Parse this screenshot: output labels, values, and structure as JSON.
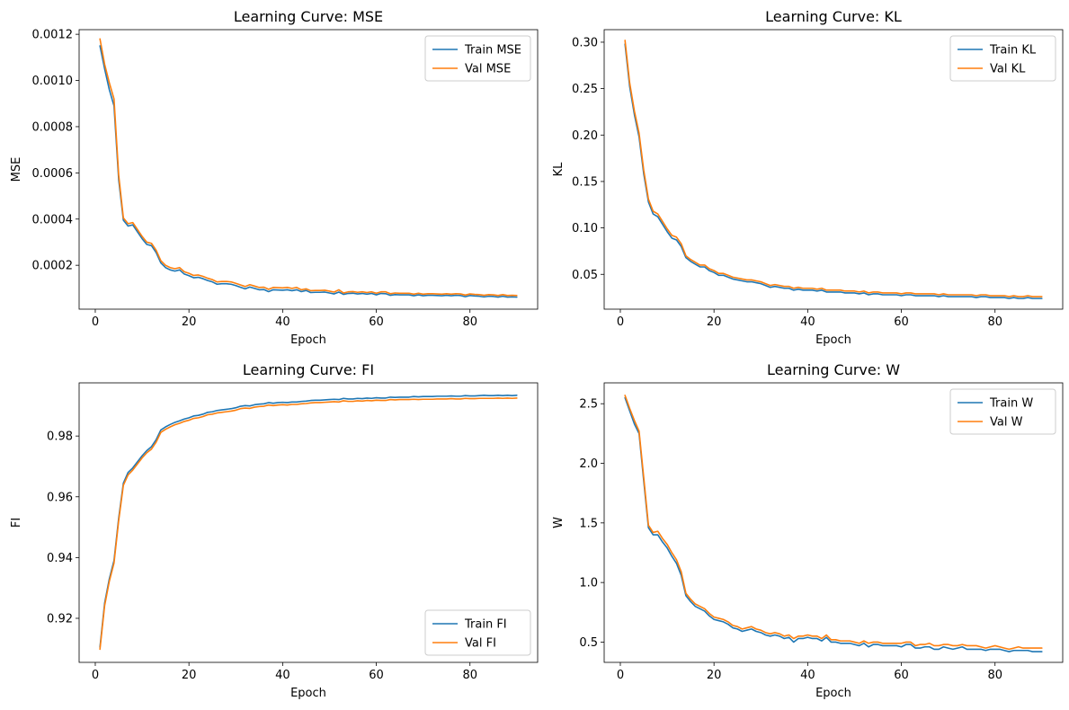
{
  "colors": {
    "train": "#1f77b4",
    "val": "#ff7f0e"
  },
  "chart_data": [
    {
      "type": "line",
      "title": "Learning Curve: MSE",
      "xlabel": "Epoch",
      "ylabel": "MSE",
      "xlim": [
        -3.45,
        94.45
      ],
      "ylim": [
        1e-05,
        0.00122
      ],
      "xticks": [
        {
          "v": 20,
          "label": "20"
        },
        {
          "v": 40,
          "label": "40"
        },
        {
          "v": 60,
          "label": "60"
        },
        {
          "v": 80,
          "label": "80"
        },
        {
          "v": 0,
          "label": "0"
        }
      ],
      "yticks": [
        {
          "v": 0.0002,
          "label": "0.0002"
        },
        {
          "v": 0.0004,
          "label": "0.0004"
        },
        {
          "v": 0.0006,
          "label": "0.0006"
        },
        {
          "v": 0.0008,
          "label": "0.0008"
        },
        {
          "v": 0.001,
          "label": "0.0010"
        },
        {
          "v": 0.0012,
          "label": "0.0012"
        }
      ],
      "legend": "upper-right",
      "series": [
        {
          "name": "Train MSE",
          "x_start": 1,
          "x_end": 90,
          "values": [
            0.00115,
            0.00105,
            0.00096,
            0.00089,
            0.00057,
            0.000395,
            0.00037,
            0.000375,
            0.000345,
            0.000315,
            0.00029,
            0.000285,
            0.000255,
            0.00021,
            0.00019,
            0.00018,
            0.000175,
            0.00018,
            0.000162,
            0.000155,
            0.000146,
            0.000148,
            0.000142,
            0.000134,
            0.000128,
            0.000118,
            0.00012,
            0.00012,
            0.000118,
            0.000112,
            0.000105,
            9.8e-05,
            0.000106,
            0.0001,
            9.4e-05,
            9.5e-05,
            8.6e-05,
            9.4e-05,
            9.3e-05,
            9.2e-05,
            9.4e-05,
            9e-05,
            9.4e-05,
            8.6e-05,
            9.1e-05,
            8.2e-05,
            8.3e-05,
            8.3e-05,
            8.4e-05,
            8e-05,
            7.6e-05,
            8.4e-05,
            7.4e-05,
            7.8e-05,
            7.9e-05,
            7.6e-05,
            7.8e-05,
            7.5e-05,
            7.8e-05,
            7.2e-05,
            7.8e-05,
            7.7e-05,
            7e-05,
            7.3e-05,
            7.2e-05,
            7.2e-05,
            7.2e-05,
            6.8e-05,
            7.2e-05,
            6.8e-05,
            7e-05,
            7e-05,
            6.9e-05,
            6.8e-05,
            7e-05,
            6.8e-05,
            7e-05,
            6.9e-05,
            6.4e-05,
            6.9e-05,
            6.7e-05,
            6.6e-05,
            6.3e-05,
            6.6e-05,
            6.5e-05,
            6.2e-05,
            6.6e-05,
            6.2e-05,
            6.3e-05,
            6.2e-05
          ]
        },
        {
          "name": "Val MSE",
          "x_start": 1,
          "x_end": 90,
          "values": [
            0.00118,
            0.00107,
            0.00099,
            0.00092,
            0.00059,
            0.000405,
            0.00038,
            0.000385,
            0.000355,
            0.000325,
            0.0003,
            0.000295,
            0.000265,
            0.00022,
            0.0002,
            0.00019,
            0.000185,
            0.00019,
            0.000172,
            0.000165,
            0.000156,
            0.000158,
            0.000152,
            0.000144,
            0.000138,
            0.000128,
            0.00013,
            0.00013,
            0.000128,
            0.000122,
            0.000115,
            0.000108,
            0.000116,
            0.00011,
            0.000104,
            0.000105,
            9.6e-05,
            0.000104,
            0.000103,
            0.000102,
            0.000104,
            0.0001,
            0.000104,
            9.4e-05,
            9.8e-05,
            9e-05,
            9.1e-05,
            9.1e-05,
            9.2e-05,
            8.8e-05,
            8.4e-05,
            9.4e-05,
            8e-05,
            8.5e-05,
            8.6e-05,
            8.3e-05,
            8.5e-05,
            8.2e-05,
            8.5e-05,
            7.9e-05,
            8.5e-05,
            8.5e-05,
            7.7e-05,
            8e-05,
            7.9e-05,
            7.9e-05,
            7.9e-05,
            7.5e-05,
            7.9e-05,
            7.5e-05,
            7.7e-05,
            7.7e-05,
            7.6e-05,
            7.5e-05,
            7.7e-05,
            7.5e-05,
            7.7e-05,
            7.6e-05,
            7.1e-05,
            7.6e-05,
            7.4e-05,
            7.3e-05,
            7e-05,
            7.3e-05,
            7.2e-05,
            6.9e-05,
            7.3e-05,
            6.9e-05,
            7e-05,
            6.9e-05
          ]
        }
      ]
    },
    {
      "type": "line",
      "title": "Learning Curve: KL",
      "xlabel": "Epoch",
      "ylabel": "KL",
      "xlim": [
        -3.45,
        94.45
      ],
      "ylim": [
        0.0125,
        0.3135
      ],
      "xticks": [
        {
          "v": 20,
          "label": "20"
        },
        {
          "v": 40,
          "label": "40"
        },
        {
          "v": 60,
          "label": "60"
        },
        {
          "v": 80,
          "label": "80"
        },
        {
          "v": 0,
          "label": "0"
        }
      ],
      "yticks": [
        {
          "v": 0.05,
          "label": "0.05"
        },
        {
          "v": 0.1,
          "label": "0.10"
        },
        {
          "v": 0.15,
          "label": "0.15"
        },
        {
          "v": 0.2,
          "label": "0.20"
        },
        {
          "v": 0.25,
          "label": "0.25"
        },
        {
          "v": 0.3,
          "label": "0.30"
        }
      ],
      "legend": "upper-right",
      "series": [
        {
          "name": "Train KL",
          "x_start": 1,
          "x_end": 90,
          "values": [
            0.298,
            0.252,
            0.222,
            0.198,
            0.158,
            0.128,
            0.115,
            0.112,
            0.104,
            0.096,
            0.089,
            0.087,
            0.08,
            0.068,
            0.064,
            0.061,
            0.058,
            0.058,
            0.054,
            0.052,
            0.049,
            0.049,
            0.047,
            0.045,
            0.044,
            0.043,
            0.042,
            0.042,
            0.041,
            0.04,
            0.038,
            0.036,
            0.037,
            0.036,
            0.035,
            0.035,
            0.033,
            0.034,
            0.033,
            0.033,
            0.033,
            0.032,
            0.033,
            0.031,
            0.031,
            0.031,
            0.031,
            0.03,
            0.03,
            0.03,
            0.029,
            0.03,
            0.028,
            0.029,
            0.029,
            0.028,
            0.028,
            0.028,
            0.028,
            0.027,
            0.028,
            0.028,
            0.027,
            0.027,
            0.027,
            0.027,
            0.027,
            0.026,
            0.027,
            0.026,
            0.026,
            0.026,
            0.026,
            0.026,
            0.026,
            0.025,
            0.026,
            0.026,
            0.025,
            0.025,
            0.025,
            0.025,
            0.024,
            0.025,
            0.024,
            0.024,
            0.025,
            0.024,
            0.024,
            0.024
          ]
        },
        {
          "name": "Val KL",
          "x_start": 1,
          "x_end": 90,
          "values": [
            0.302,
            0.256,
            0.226,
            0.202,
            0.162,
            0.131,
            0.118,
            0.115,
            0.107,
            0.099,
            0.092,
            0.09,
            0.083,
            0.07,
            0.066,
            0.063,
            0.06,
            0.06,
            0.056,
            0.054,
            0.051,
            0.051,
            0.049,
            0.047,
            0.046,
            0.045,
            0.044,
            0.044,
            0.043,
            0.042,
            0.04,
            0.038,
            0.039,
            0.038,
            0.037,
            0.037,
            0.035,
            0.036,
            0.035,
            0.035,
            0.035,
            0.034,
            0.035,
            0.033,
            0.033,
            0.033,
            0.033,
            0.032,
            0.032,
            0.032,
            0.031,
            0.032,
            0.03,
            0.031,
            0.031,
            0.03,
            0.03,
            0.03,
            0.03,
            0.029,
            0.03,
            0.03,
            0.029,
            0.029,
            0.029,
            0.029,
            0.029,
            0.028,
            0.029,
            0.028,
            0.028,
            0.028,
            0.028,
            0.028,
            0.028,
            0.027,
            0.028,
            0.028,
            0.027,
            0.027,
            0.027,
            0.027,
            0.026,
            0.027,
            0.026,
            0.026,
            0.027,
            0.026,
            0.026,
            0.026
          ]
        }
      ]
    },
    {
      "type": "line",
      "title": "Learning Curve: FI",
      "xlabel": "Epoch",
      "ylabel": "FI",
      "xlim": [
        -3.45,
        94.45
      ],
      "ylim": [
        0.9055,
        0.9975
      ],
      "xticks": [
        {
          "v": 20,
          "label": "20"
        },
        {
          "v": 40,
          "label": "40"
        },
        {
          "v": 60,
          "label": "60"
        },
        {
          "v": 80,
          "label": "80"
        },
        {
          "v": 0,
          "label": "0"
        }
      ],
      "yticks": [
        {
          "v": 0.92,
          "label": "0.92"
        },
        {
          "v": 0.94,
          "label": "0.94"
        },
        {
          "v": 0.96,
          "label": "0.96"
        },
        {
          "v": 0.98,
          "label": "0.98"
        }
      ],
      "legend": "lower-right",
      "series": [
        {
          "name": "Train FI",
          "x_start": 1,
          "x_end": 90,
          "values": [
            0.9105,
            0.925,
            0.933,
            0.939,
            0.953,
            0.9645,
            0.968,
            0.9695,
            0.9715,
            0.9735,
            0.9752,
            0.9765,
            0.9788,
            0.982,
            0.983,
            0.9838,
            0.9845,
            0.985,
            0.9856,
            0.986,
            0.9866,
            0.9868,
            0.9872,
            0.9878,
            0.988,
            0.9884,
            0.9886,
            0.9888,
            0.989,
            0.9893,
            0.9898,
            0.99,
            0.9899,
            0.9903,
            0.9905,
            0.9906,
            0.991,
            0.9908,
            0.991,
            0.9911,
            0.991,
            0.9912,
            0.9912,
            0.9914,
            0.9915,
            0.9917,
            0.9918,
            0.9918,
            0.9919,
            0.992,
            0.9921,
            0.992,
            0.9924,
            0.9922,
            0.9922,
            0.9924,
            0.9923,
            0.9925,
            0.9924,
            0.9926,
            0.9925,
            0.9925,
            0.9928,
            0.9927,
            0.9928,
            0.9928,
            0.9928,
            0.993,
            0.9929,
            0.993,
            0.993,
            0.993,
            0.9931,
            0.9931,
            0.9931,
            0.9932,
            0.9931,
            0.9931,
            0.9933,
            0.9932,
            0.9932,
            0.9933,
            0.9934,
            0.9933,
            0.9933,
            0.9934,
            0.9933,
            0.9934,
            0.9933,
            0.9934
          ]
        },
        {
          "name": "Val FI",
          "x_start": 1,
          "x_end": 90,
          "values": [
            0.9098,
            0.9242,
            0.9322,
            0.9382,
            0.9522,
            0.9638,
            0.9672,
            0.9688,
            0.9708,
            0.9728,
            0.9745,
            0.9757,
            0.978,
            0.9812,
            0.9822,
            0.983,
            0.9837,
            0.9842,
            0.9848,
            0.9852,
            0.9858,
            0.986,
            0.9864,
            0.987,
            0.9872,
            0.9876,
            0.9878,
            0.988,
            0.9882,
            0.9885,
            0.989,
            0.9892,
            0.9891,
            0.9895,
            0.9897,
            0.9898,
            0.9902,
            0.99,
            0.9902,
            0.9903,
            0.9902,
            0.9904,
            0.9904,
            0.9906,
            0.9907,
            0.9909,
            0.991,
            0.991,
            0.9911,
            0.9912,
            0.9913,
            0.9912,
            0.9916,
            0.9914,
            0.9914,
            0.9916,
            0.9915,
            0.9917,
            0.9916,
            0.9918,
            0.9917,
            0.9917,
            0.992,
            0.9919,
            0.992,
            0.992,
            0.992,
            0.9921,
            0.992,
            0.9921,
            0.9921,
            0.9921,
            0.9922,
            0.9922,
            0.9922,
            0.9923,
            0.9922,
            0.9922,
            0.9924,
            0.9923,
            0.9923,
            0.9924,
            0.9924,
            0.9924,
            0.9924,
            0.9925,
            0.9924,
            0.9925,
            0.9924,
            0.9925
          ]
        }
      ]
    },
    {
      "type": "line",
      "title": "Learning Curve: W",
      "xlabel": "Epoch",
      "ylabel": "W",
      "xlim": [
        -3.45,
        94.45
      ],
      "ylim": [
        0.33,
        2.675
      ],
      "xticks": [
        {
          "v": 20,
          "label": "20"
        },
        {
          "v": 40,
          "label": "40"
        },
        {
          "v": 60,
          "label": "60"
        },
        {
          "v": 80,
          "label": "80"
        },
        {
          "v": 0,
          "label": "0"
        }
      ],
      "yticks": [
        {
          "v": 0.5,
          "label": "0.5"
        },
        {
          "v": 1.0,
          "label": "1.0"
        },
        {
          "v": 1.5,
          "label": "1.5"
        },
        {
          "v": 2.0,
          "label": "2.0"
        },
        {
          "v": 2.5,
          "label": "2.5"
        }
      ],
      "legend": "upper-right",
      "series": [
        {
          "name": "Train W",
          "x_start": 1,
          "x_end": 90,
          "values": [
            2.55,
            2.44,
            2.33,
            2.25,
            1.85,
            1.46,
            1.4,
            1.4,
            1.34,
            1.29,
            1.22,
            1.16,
            1.06,
            0.89,
            0.84,
            0.8,
            0.78,
            0.76,
            0.72,
            0.69,
            0.68,
            0.67,
            0.65,
            0.62,
            0.61,
            0.59,
            0.6,
            0.61,
            0.59,
            0.58,
            0.56,
            0.55,
            0.56,
            0.55,
            0.53,
            0.54,
            0.5,
            0.53,
            0.53,
            0.54,
            0.53,
            0.53,
            0.51,
            0.54,
            0.5,
            0.5,
            0.49,
            0.49,
            0.49,
            0.48,
            0.47,
            0.49,
            0.46,
            0.48,
            0.48,
            0.47,
            0.47,
            0.47,
            0.47,
            0.46,
            0.48,
            0.48,
            0.45,
            0.45,
            0.46,
            0.46,
            0.44,
            0.44,
            0.46,
            0.45,
            0.44,
            0.45,
            0.46,
            0.44,
            0.44,
            0.44,
            0.44,
            0.43,
            0.44,
            0.44,
            0.44,
            0.43,
            0.42,
            0.43,
            0.43,
            0.43,
            0.43,
            0.42,
            0.42,
            0.42
          ]
        },
        {
          "name": "Val W",
          "x_start": 1,
          "x_end": 90,
          "values": [
            2.57,
            2.46,
            2.36,
            2.27,
            1.88,
            1.48,
            1.42,
            1.43,
            1.37,
            1.32,
            1.25,
            1.19,
            1.09,
            0.91,
            0.86,
            0.82,
            0.8,
            0.78,
            0.74,
            0.71,
            0.7,
            0.69,
            0.67,
            0.64,
            0.63,
            0.61,
            0.62,
            0.63,
            0.61,
            0.6,
            0.58,
            0.57,
            0.58,
            0.57,
            0.55,
            0.56,
            0.53,
            0.55,
            0.55,
            0.56,
            0.55,
            0.55,
            0.53,
            0.56,
            0.52,
            0.52,
            0.51,
            0.51,
            0.51,
            0.5,
            0.49,
            0.51,
            0.49,
            0.5,
            0.5,
            0.49,
            0.49,
            0.49,
            0.49,
            0.49,
            0.5,
            0.5,
            0.47,
            0.48,
            0.48,
            0.49,
            0.47,
            0.47,
            0.48,
            0.48,
            0.47,
            0.47,
            0.48,
            0.47,
            0.47,
            0.47,
            0.46,
            0.45,
            0.46,
            0.47,
            0.46,
            0.45,
            0.44,
            0.45,
            0.46,
            0.45,
            0.45,
            0.45,
            0.45,
            0.45
          ]
        }
      ]
    }
  ]
}
